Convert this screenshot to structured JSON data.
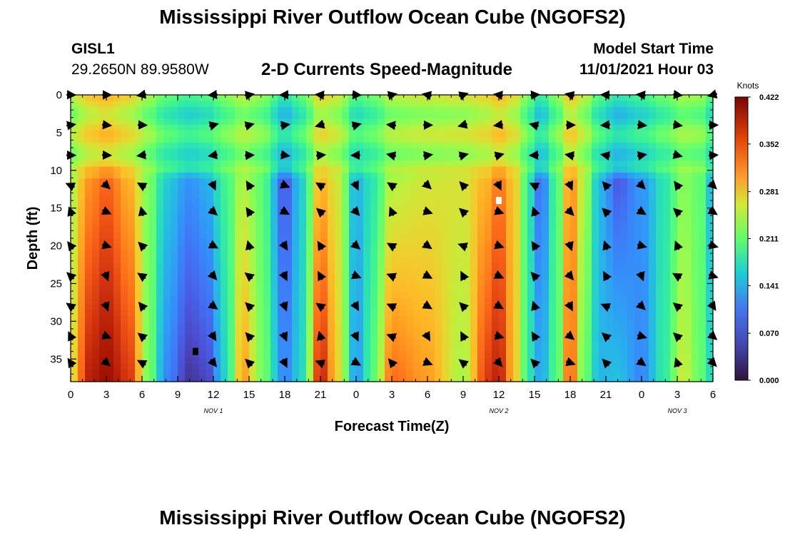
{
  "header": {
    "title": "Mississippi River Outflow Ocean Cube (NGOFS2)",
    "station": "GISL1",
    "coords": "29.2650N  89.9580W",
    "plot_title": "2-D Currents Speed-Magnitude",
    "model_start_label": "Model Start Time",
    "model_start_value": "11/01/2021 Hour 03"
  },
  "footer": {
    "title": "Mississippi River Outflow Ocean Cube (NGOFS2)"
  },
  "colorbar": {
    "unit": "Knots",
    "ticks": [
      "0.422",
      "0.352",
      "0.281",
      "0.211",
      "0.141",
      "0.070",
      "0.000"
    ],
    "tick_values": [
      0.422,
      0.352,
      0.281,
      0.211,
      0.141,
      0.07,
      0.0
    ]
  },
  "chart_data": {
    "type": "heatmap",
    "title": "2-D Currents Speed-Magnitude",
    "xlabel": "Forecast Time(Z)",
    "ylabel": "Depth (ft)",
    "xlim": [
      0,
      54
    ],
    "ylim": [
      38,
      0
    ],
    "x_tick_values": [
      0,
      3,
      6,
      9,
      12,
      15,
      18,
      21,
      24,
      27,
      30,
      33,
      36,
      39,
      42,
      45,
      48,
      51,
      54
    ],
    "x_tick_labels": [
      "0",
      "3",
      "6",
      "9",
      "12",
      "15",
      "18",
      "21",
      "0",
      "3",
      "6",
      "9",
      "12",
      "15",
      "18",
      "21",
      "0",
      "3",
      "6"
    ],
    "y_tick_values": [
      0,
      5,
      10,
      15,
      20,
      25,
      30,
      35
    ],
    "y_tick_labels": [
      "0",
      "5",
      "10",
      "15",
      "20",
      "25",
      "30",
      "35"
    ],
    "date_labels": [
      {
        "x": 12,
        "label": "NOV 1"
      },
      {
        "x": 36,
        "label": "NOV 2"
      },
      {
        "x": 51,
        "label": "NOV 3"
      }
    ],
    "speed_range": [
      0.0,
      0.422
    ],
    "speed_unit": "Knots",
    "profile_nodes": [
      {
        "x": 0,
        "top": 0.22,
        "bottom": 0.25
      },
      {
        "x": 1.5,
        "top": 0.3,
        "bottom": 0.38
      },
      {
        "x": 3,
        "top": 0.33,
        "bottom": 0.4
      },
      {
        "x": 5,
        "top": 0.28,
        "bottom": 0.36
      },
      {
        "x": 6.5,
        "top": 0.2,
        "bottom": 0.2
      },
      {
        "x": 8,
        "top": 0.12,
        "bottom": 0.07
      },
      {
        "x": 10,
        "top": 0.08,
        "bottom": 0.02
      },
      {
        "x": 11.5,
        "top": 0.1,
        "bottom": 0.03
      },
      {
        "x": 13,
        "top": 0.16,
        "bottom": 0.12
      },
      {
        "x": 14.5,
        "top": 0.22,
        "bottom": 0.3
      },
      {
        "x": 16,
        "top": 0.18,
        "bottom": 0.2
      },
      {
        "x": 18,
        "top": 0.04,
        "bottom": 0.07
      },
      {
        "x": 19.5,
        "top": 0.12,
        "bottom": 0.13
      },
      {
        "x": 21,
        "top": 0.28,
        "bottom": 0.38
      },
      {
        "x": 22.5,
        "top": 0.24,
        "bottom": 0.26
      },
      {
        "x": 24,
        "top": 0.1,
        "bottom": 0.08
      },
      {
        "x": 25.5,
        "top": 0.14,
        "bottom": 0.18
      },
      {
        "x": 27,
        "top": 0.22,
        "bottom": 0.33
      },
      {
        "x": 30,
        "top": 0.24,
        "bottom": 0.3
      },
      {
        "x": 33,
        "top": 0.25,
        "bottom": 0.22
      },
      {
        "x": 35,
        "top": 0.28,
        "bottom": 0.36
      },
      {
        "x": 36,
        "top": 0.32,
        "bottom": 0.38
      },
      {
        "x": 37.5,
        "top": 0.26,
        "bottom": 0.26
      },
      {
        "x": 38.5,
        "top": 0.14,
        "bottom": 0.14
      },
      {
        "x": 39.5,
        "top": 0.05,
        "bottom": 0.09
      },
      {
        "x": 41,
        "top": 0.18,
        "bottom": 0.18
      },
      {
        "x": 42,
        "top": 0.31,
        "bottom": 0.35
      },
      {
        "x": 43,
        "top": 0.24,
        "bottom": 0.2
      },
      {
        "x": 44.5,
        "top": 0.1,
        "bottom": 0.1
      },
      {
        "x": 46,
        "top": 0.04,
        "bottom": 0.11
      },
      {
        "x": 48,
        "top": 0.08,
        "bottom": 0.07
      },
      {
        "x": 50,
        "top": 0.14,
        "bottom": 0.15
      },
      {
        "x": 51.5,
        "top": 0.2,
        "bottom": 0.24
      },
      {
        "x": 53,
        "top": 0.18,
        "bottom": 0.18
      },
      {
        "x": 54,
        "top": 0.09,
        "bottom": 0.12
      }
    ],
    "near_surface_band": {
      "depth_from": 0,
      "depth_to": 10,
      "speed": 0.2
    },
    "direction_vectors": {
      "x_values": [
        0,
        3,
        6,
        12,
        15,
        18,
        21,
        24,
        27,
        30,
        33,
        36,
        39,
        42,
        45,
        48,
        51,
        54
      ],
      "depth_values": [
        0,
        4,
        8,
        12,
        15.5,
        20,
        24,
        28,
        32,
        35.5
      ],
      "direction_pattern": "variable"
    },
    "markers": [
      {
        "x": 36,
        "depth": 14,
        "color": "white"
      },
      {
        "x": 10.5,
        "depth": 34,
        "color": "black"
      }
    ]
  }
}
